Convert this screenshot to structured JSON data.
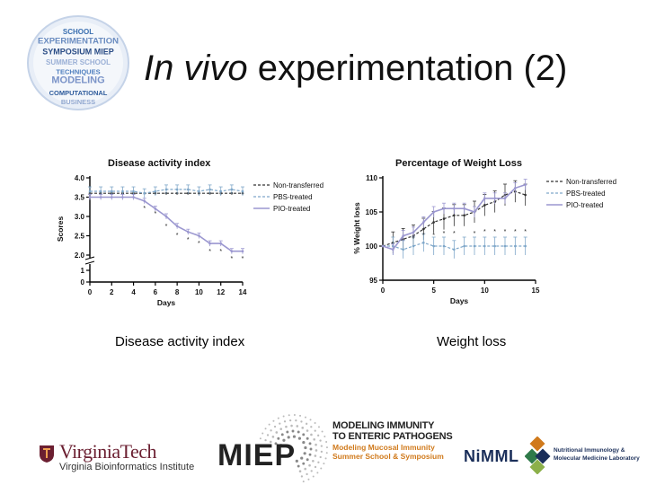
{
  "slide": {
    "title_italic": "In vivo",
    "title_rest": " experimentation (2)"
  },
  "badge": {
    "words": [
      "SCHOOL",
      "EXPERIMENTATION",
      "SYMPOSIUM MIEP",
      "SUMMER SCHOOL",
      "TECHNIQUES",
      "MODELING",
      "COMPUTATIONAL",
      "BUSINESS"
    ]
  },
  "chart_data": [
    {
      "type": "line",
      "title": "Disease activity index",
      "xlabel": "Days",
      "ylabel": "Scores",
      "xlim": [
        0,
        14
      ],
      "ylim": [
        0,
        4.0
      ],
      "xticks": [
        "0",
        "2",
        "4",
        "6",
        "8",
        "10",
        "12",
        "14"
      ],
      "yticks_upper": [
        "2.0",
        "2.5",
        "3.0",
        "3.5",
        "4.0"
      ],
      "yticks_lower": [
        "0",
        "1"
      ],
      "legend_position": "top-right",
      "series": [
        {
          "name": "Non-transferred",
          "style": "dashed",
          "color": "#333333",
          "x": [
            0,
            1,
            2,
            3,
            4,
            5,
            6,
            7,
            8,
            9,
            10,
            11,
            12,
            13,
            14
          ],
          "y": [
            3.6,
            3.6,
            3.6,
            3.6,
            3.6,
            3.6,
            3.6,
            3.6,
            3.6,
            3.6,
            3.6,
            3.6,
            3.6,
            3.6,
            3.6
          ]
        },
        {
          "name": "PBS-treated",
          "style": "dashed",
          "color": "#7fa7c9",
          "x": [
            0,
            1,
            2,
            3,
            4,
            5,
            6,
            7,
            8,
            9,
            10,
            11,
            12,
            13,
            14
          ],
          "y": [
            3.65,
            3.65,
            3.65,
            3.65,
            3.65,
            3.6,
            3.65,
            3.7,
            3.7,
            3.7,
            3.65,
            3.7,
            3.65,
            3.7,
            3.65
          ]
        },
        {
          "name": "PIO-treated",
          "style": "solid",
          "color": "#9b97d0",
          "x": [
            0,
            1,
            2,
            3,
            4,
            5,
            6,
            7,
            8,
            9,
            10,
            11,
            12,
            13,
            14
          ],
          "y": [
            3.5,
            3.5,
            3.5,
            3.5,
            3.5,
            3.4,
            3.2,
            3.0,
            2.75,
            2.6,
            2.5,
            2.3,
            2.3,
            2.1,
            2.1
          ]
        }
      ],
      "significance_marker": "*"
    },
    {
      "type": "line",
      "title": "Percentage of Weight Loss",
      "xlabel": "Days",
      "ylabel": "% Weight loss",
      "xlim": [
        0,
        15
      ],
      "ylim": [
        95,
        110
      ],
      "xticks": [
        "0",
        "5",
        "10",
        "15"
      ],
      "yticks": [
        "95",
        "100",
        "105",
        "110"
      ],
      "legend_position": "top-right",
      "series": [
        {
          "name": "Non-transferred",
          "style": "dashed",
          "color": "#333333",
          "x": [
            0,
            1,
            2,
            3,
            4,
            5,
            6,
            7,
            8,
            9,
            10,
            11,
            12,
            13,
            14
          ],
          "y": [
            100,
            100.5,
            101,
            101.5,
            102.5,
            103.5,
            104,
            104.5,
            104.5,
            105,
            106,
            106.5,
            107.5,
            108,
            107.5
          ]
        },
        {
          "name": "PBS-treated",
          "style": "dashed",
          "color": "#7fa7c9",
          "x": [
            0,
            1,
            2,
            3,
            4,
            5,
            6,
            7,
            8,
            9,
            10,
            11,
            12,
            13,
            14
          ],
          "y": [
            100,
            100,
            99.5,
            100,
            100.5,
            100,
            100,
            99.5,
            100,
            100,
            100,
            100,
            100,
            100,
            100
          ]
        },
        {
          "name": "PIO-treated",
          "style": "solid",
          "color": "#9b97d0",
          "x": [
            0,
            1,
            2,
            3,
            4,
            5,
            6,
            7,
            8,
            9,
            10,
            11,
            12,
            13,
            14
          ],
          "y": [
            100,
            99.5,
            101.5,
            102,
            103.5,
            105,
            105.5,
            105.5,
            105.5,
            105,
            107,
            107,
            107,
            108.5,
            109
          ]
        }
      ],
      "significance_marker": "*"
    }
  ],
  "captions": {
    "left": "Disease activity index",
    "right": "Weight loss"
  },
  "logos": {
    "vt_name": "VirginiaTech",
    "vt_sub": "Virginia Bioinformatics Institute",
    "miep_word": "MIEP",
    "mimic_title1": "MODELING IMMUNITY",
    "mimic_title2": "TO ENTERIC PATHOGENS",
    "mimic_sub1": "Modeling Mucosal Immunity",
    "mimic_sub2": "Summer School & Symposium",
    "nimml_word": "NiMML",
    "nimml_sub1": "Nutritional Immunology &",
    "nimml_sub2": "Molecular Medicine Laboratory"
  },
  "colors": {
    "brand_vt": "#6b1f31",
    "miep_orange": "#d07a1c",
    "nimml_navy": "#1b2f5a",
    "badge_blue": "#3a6fb0"
  }
}
